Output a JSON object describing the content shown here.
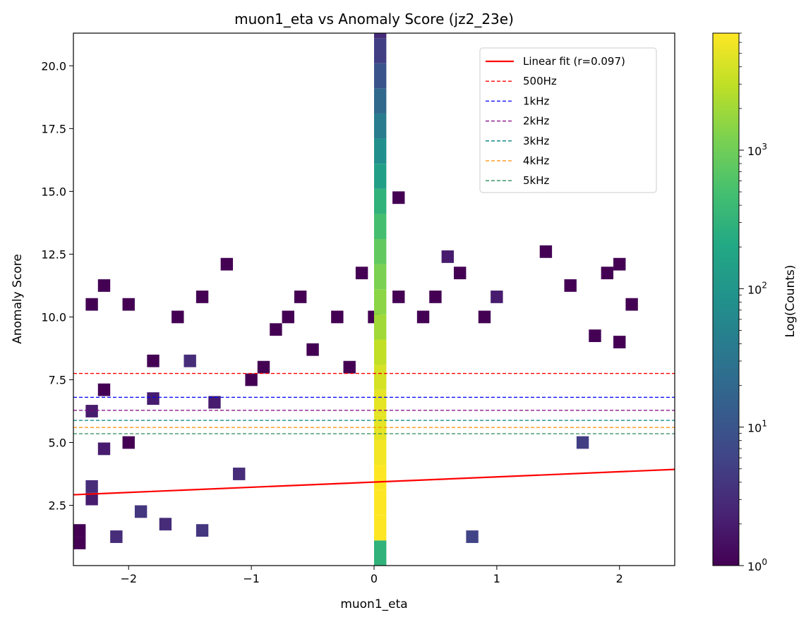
{
  "chart_data": {
    "type": "heatmap",
    "title": "muon1_eta vs Anomaly Score (jz2_23e)",
    "xlabel": "muon1_eta",
    "ylabel": "Anomaly Score",
    "xlim": [
      -2.45,
      2.45
    ],
    "ylim": [
      0.1,
      21.3
    ],
    "x_ticks": [
      -2,
      -1,
      0,
      1,
      2
    ],
    "x_tick_labels": [
      "−2",
      "−1",
      "0",
      "1",
      "2"
    ],
    "y_ticks": [
      2.5,
      5.0,
      7.5,
      10.0,
      12.5,
      15.0,
      17.5,
      20.0
    ],
    "y_tick_labels": [
      "2.5",
      "5.0",
      "7.5",
      "10.0",
      "12.5",
      "15.0",
      "17.5",
      "20.0"
    ],
    "colorbar": {
      "label": "Log(Counts)",
      "scale": "log",
      "range": [
        1,
        7000
      ],
      "colormap": "viridis",
      "ticks": [
        1,
        10,
        100,
        1000
      ],
      "tick_bases": [
        "10",
        "10",
        "10",
        "10"
      ],
      "tick_exps": [
        "0",
        "1",
        "2",
        "3"
      ]
    },
    "legend": {
      "placement": "top-right",
      "entries": [
        {
          "label": "Linear fit (r=0.097)",
          "color": "#ff0000",
          "style": "solid"
        },
        {
          "label": "500Hz",
          "color": "#ff0000",
          "style": "dashed"
        },
        {
          "label": "1kHz",
          "color": "#0000ff",
          "style": "dashed"
        },
        {
          "label": "2kHz",
          "color": "#800080",
          "style": "dashed"
        },
        {
          "label": "3kHz",
          "color": "#008080",
          "style": "dashed"
        },
        {
          "label": "4kHz",
          "color": "#ff8c00",
          "style": "dashed"
        },
        {
          "label": "5kHz",
          "color": "#2e8b57",
          "style": "dashed"
        }
      ]
    },
    "threshold_lines": [
      {
        "name": "500Hz",
        "y": 7.75,
        "color": "#ff0000"
      },
      {
        "name": "1kHz",
        "y": 6.8,
        "color": "#0000ff"
      },
      {
        "name": "2kHz",
        "y": 6.28,
        "color": "#800080"
      },
      {
        "name": "3kHz",
        "y": 5.88,
        "color": "#008080"
      },
      {
        "name": "4kHz",
        "y": 5.6,
        "color": "#ff8c00"
      },
      {
        "name": "5kHz",
        "y": 5.35,
        "color": "#2e8b57"
      }
    ],
    "fit_line": {
      "x": [
        -2.45,
        2.45
      ],
      "y": [
        2.92,
        3.93
      ],
      "color": "#ff0000"
    },
    "bin_counts": {
      "central_column_x": [
        0.0,
        0.1
      ],
      "y_edges_step": 0.5,
      "central_counts": [
        300,
        7000,
        7000,
        7000,
        6000,
        5000,
        5000,
        4000,
        3000,
        2000,
        1500,
        1200,
        800,
        500,
        300,
        150,
        80,
        40,
        20,
        10,
        5,
        3
      ],
      "sparse_bins": [
        {
          "x": -2.45,
          "y": 1.0,
          "count": 1
        },
        {
          "x": -2.45,
          "y": 1.5,
          "count": 1
        },
        {
          "x": -2.35,
          "y": 2.75,
          "count": 2
        },
        {
          "x": -2.35,
          "y": 3.25,
          "count": 3
        },
        {
          "x": -2.35,
          "y": 6.25,
          "count": 2
        },
        {
          "x": -2.35,
          "y": 10.5,
          "count": 1
        },
        {
          "x": -2.25,
          "y": 4.75,
          "count": 2
        },
        {
          "x": -2.25,
          "y": 7.1,
          "count": 1
        },
        {
          "x": -2.25,
          "y": 11.25,
          "count": 1
        },
        {
          "x": -2.15,
          "y": 1.25,
          "count": 3
        },
        {
          "x": -2.05,
          "y": 5.0,
          "count": 1
        },
        {
          "x": -2.05,
          "y": 10.5,
          "count": 1
        },
        {
          "x": -1.95,
          "y": 2.25,
          "count": 4
        },
        {
          "x": -1.85,
          "y": 6.75,
          "count": 2
        },
        {
          "x": -1.85,
          "y": 8.25,
          "count": 1
        },
        {
          "x": -1.75,
          "y": 1.75,
          "count": 3
        },
        {
          "x": -1.65,
          "y": 10.0,
          "count": 1
        },
        {
          "x": -1.55,
          "y": 8.25,
          "count": 3
        },
        {
          "x": -1.45,
          "y": 1.5,
          "count": 4
        },
        {
          "x": -1.45,
          "y": 10.8,
          "count": 1
        },
        {
          "x": -1.35,
          "y": 6.6,
          "count": 2
        },
        {
          "x": -1.25,
          "y": 12.1,
          "count": 1
        },
        {
          "x": -1.15,
          "y": 3.75,
          "count": 3
        },
        {
          "x": -1.05,
          "y": 7.5,
          "count": 1
        },
        {
          "x": -0.95,
          "y": 8.0,
          "count": 1
        },
        {
          "x": -0.85,
          "y": 9.5,
          "count": 1
        },
        {
          "x": -0.75,
          "y": 10.0,
          "count": 1
        },
        {
          "x": -0.65,
          "y": 10.8,
          "count": 1
        },
        {
          "x": -0.55,
          "y": 8.7,
          "count": 1
        },
        {
          "x": -0.35,
          "y": 10.0,
          "count": 1
        },
        {
          "x": -0.25,
          "y": 8.0,
          "count": 1
        },
        {
          "x": -0.15,
          "y": 11.75,
          "count": 1
        },
        {
          "x": -0.05,
          "y": 10.0,
          "count": 1
        },
        {
          "x": 0.15,
          "y": 14.75,
          "count": 1
        },
        {
          "x": 0.15,
          "y": 10.8,
          "count": 1
        },
        {
          "x": 0.35,
          "y": 10.0,
          "count": 1
        },
        {
          "x": 0.45,
          "y": 10.8,
          "count": 1
        },
        {
          "x": 0.55,
          "y": 12.4,
          "count": 2
        },
        {
          "x": 0.65,
          "y": 11.75,
          "count": 1
        },
        {
          "x": 0.85,
          "y": 10.0,
          "count": 1
        },
        {
          "x": 0.95,
          "y": 10.8,
          "count": 2
        },
        {
          "x": 1.35,
          "y": 12.6,
          "count": 1
        },
        {
          "x": 1.55,
          "y": 11.25,
          "count": 1
        },
        {
          "x": 1.85,
          "y": 11.75,
          "count": 1
        },
        {
          "x": 1.95,
          "y": 12.1,
          "count": 1
        },
        {
          "x": 2.05,
          "y": 10.5,
          "count": 1
        },
        {
          "x": 1.75,
          "y": 9.25,
          "count": 1
        },
        {
          "x": 1.95,
          "y": 9.0,
          "count": 1
        },
        {
          "x": 1.65,
          "y": 5.0,
          "count": 5
        },
        {
          "x": 0.75,
          "y": 1.25,
          "count": 6
        }
      ]
    }
  }
}
